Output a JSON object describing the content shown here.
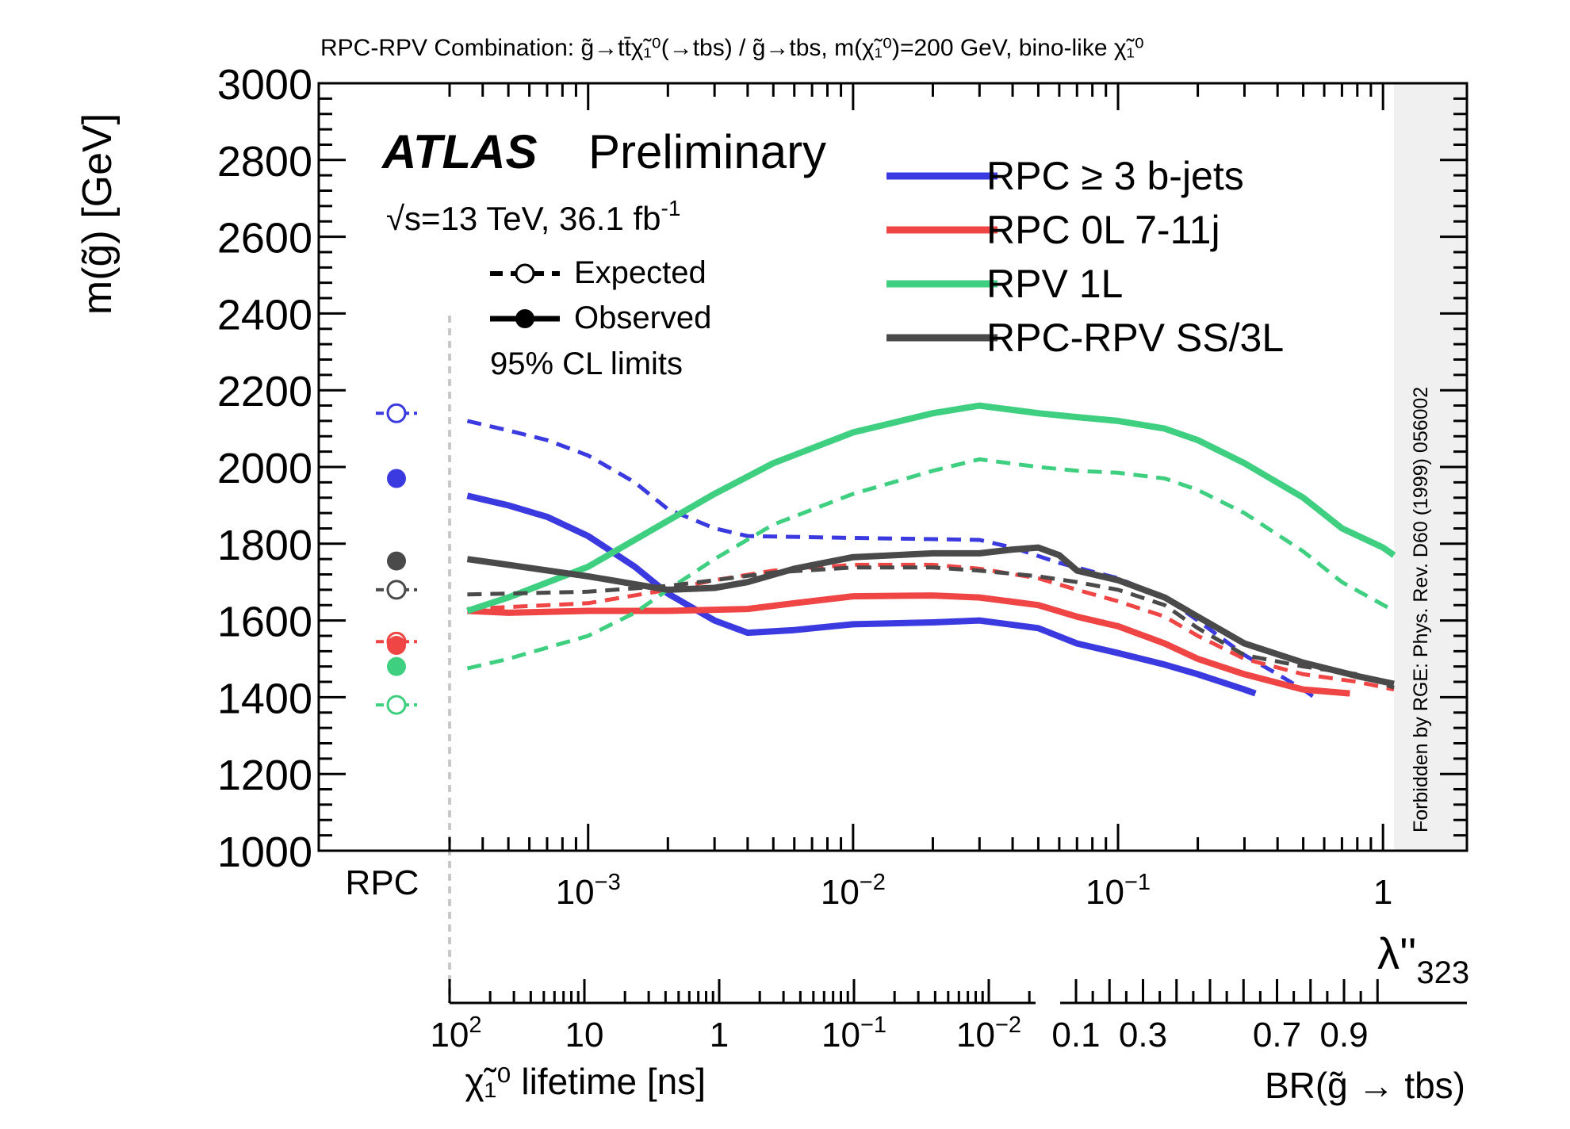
{
  "chart_data": {
    "type": "line",
    "title": "RPC-RPV Combination: g̃→tt̄χ̃₁⁰(→tbs) / g̃→tbs, m(χ̃₁⁰)=200 GeV, bino-like χ̃₁⁰",
    "ylabel": "m(g̃) [GeV]",
    "ylim": [
      1000,
      3000
    ],
    "yticks": [
      "1000",
      "1200",
      "1400",
      "1600",
      "1800",
      "2000",
      "2200",
      "2400",
      "2600",
      "2800",
      "3000"
    ],
    "x_scale": "log",
    "xlim": [
      0.0003,
      1.1
    ],
    "xticks": [
      {
        "value": 0.001,
        "label": "10",
        "exp": "−3"
      },
      {
        "value": 0.01,
        "label": "10",
        "exp": "−2"
      },
      {
        "value": 0.1,
        "label": "10",
        "exp": "−1"
      },
      {
        "value": 1,
        "label": "1",
        "exp": ""
      }
    ],
    "xlabel": "λ''",
    "xlabel_sub": "323",
    "rpc_label": "RPC",
    "atlas_label": "ATLAS",
    "preliminary_label": "Preliminary",
    "energy_label": "√s=13 TeV, 36.1 fb",
    "energy_exp": "-1",
    "style_legend": [
      {
        "label": "Expected",
        "style": "dashed-open"
      },
      {
        "label": "Observed",
        "style": "solid-filled"
      }
    ],
    "cl_label": "95% CL limits",
    "forbidden_label": "Forbidden by RGE: Phys. Rev. D60 (1999) 056002",
    "lifetime_axis": {
      "label": "χ̃₁⁰ lifetime [ns]",
      "ticks": [
        {
          "label": "10",
          "exp": "2"
        },
        {
          "label": "10",
          "exp": ""
        },
        {
          "label": "1",
          "exp": ""
        },
        {
          "label": "10",
          "exp": "−1"
        },
        {
          "label": "10",
          "exp": "−2"
        }
      ]
    },
    "br_axis": {
      "label": "BR(g̃ → tbs)",
      "ticks": [
        "0.1",
        "0.3",
        "0.7",
        "0.9"
      ]
    },
    "series": [
      {
        "name": "RPC ≥ 3 b-jets",
        "color": "#3a3ae0",
        "rpc_expected": 2140,
        "rpc_observed": 1970,
        "observed": [
          [
            0.00035,
            1925
          ],
          [
            0.0005,
            1900
          ],
          [
            0.0007,
            1870
          ],
          [
            0.001,
            1820
          ],
          [
            0.0015,
            1740
          ],
          [
            0.002,
            1670
          ],
          [
            0.003,
            1600
          ],
          [
            0.004,
            1568
          ],
          [
            0.006,
            1575
          ],
          [
            0.01,
            1590
          ],
          [
            0.02,
            1595
          ],
          [
            0.03,
            1600
          ],
          [
            0.05,
            1580
          ],
          [
            0.07,
            1540
          ],
          [
            0.1,
            1515
          ],
          [
            0.15,
            1485
          ],
          [
            0.2,
            1460
          ],
          [
            0.3,
            1420
          ],
          [
            0.33,
            1410
          ]
        ],
        "expected": [
          [
            0.00035,
            2120
          ],
          [
            0.0005,
            2095
          ],
          [
            0.0007,
            2070
          ],
          [
            0.001,
            2030
          ],
          [
            0.0015,
            1960
          ],
          [
            0.002,
            1890
          ],
          [
            0.003,
            1840
          ],
          [
            0.004,
            1820
          ],
          [
            0.01,
            1815
          ],
          [
            0.02,
            1812
          ],
          [
            0.03,
            1810
          ],
          [
            0.04,
            1790
          ],
          [
            0.06,
            1750
          ],
          [
            0.1,
            1710
          ],
          [
            0.15,
            1660
          ],
          [
            0.2,
            1600
          ],
          [
            0.3,
            1510
          ],
          [
            0.4,
            1460
          ],
          [
            0.5,
            1420
          ],
          [
            0.55,
            1400
          ]
        ]
      },
      {
        "name": "RPC 0L 7-11j",
        "color": "#f04545",
        "rpc_expected": 1545,
        "rpc_observed": 1535,
        "observed": [
          [
            0.00035,
            1625
          ],
          [
            0.0005,
            1620
          ],
          [
            0.001,
            1625
          ],
          [
            0.002,
            1625
          ],
          [
            0.004,
            1630
          ],
          [
            0.006,
            1645
          ],
          [
            0.01,
            1663
          ],
          [
            0.02,
            1665
          ],
          [
            0.03,
            1660
          ],
          [
            0.05,
            1640
          ],
          [
            0.07,
            1610
          ],
          [
            0.1,
            1585
          ],
          [
            0.15,
            1540
          ],
          [
            0.2,
            1500
          ],
          [
            0.3,
            1460
          ],
          [
            0.5,
            1420
          ],
          [
            0.75,
            1410
          ]
        ],
        "expected": [
          [
            0.00035,
            1630
          ],
          [
            0.0005,
            1635
          ],
          [
            0.001,
            1645
          ],
          [
            0.002,
            1680
          ],
          [
            0.003,
            1705
          ],
          [
            0.005,
            1730
          ],
          [
            0.01,
            1745
          ],
          [
            0.02,
            1745
          ],
          [
            0.03,
            1735
          ],
          [
            0.05,
            1710
          ],
          [
            0.07,
            1680
          ],
          [
            0.1,
            1650
          ],
          [
            0.15,
            1610
          ],
          [
            0.2,
            1560
          ],
          [
            0.3,
            1500
          ],
          [
            0.5,
            1460
          ],
          [
            0.8,
            1440
          ],
          [
            1.1,
            1420
          ]
        ]
      },
      {
        "name": "RPV 1L",
        "color": "#3fcf80",
        "rpc_expected": 1380,
        "rpc_observed": 1480,
        "observed": [
          [
            0.00035,
            1625
          ],
          [
            0.0005,
            1660
          ],
          [
            0.001,
            1740
          ],
          [
            0.002,
            1860
          ],
          [
            0.003,
            1930
          ],
          [
            0.005,
            2010
          ],
          [
            0.01,
            2090
          ],
          [
            0.02,
            2140
          ],
          [
            0.03,
            2160
          ],
          [
            0.05,
            2140
          ],
          [
            0.07,
            2130
          ],
          [
            0.1,
            2120
          ],
          [
            0.15,
            2100
          ],
          [
            0.2,
            2070
          ],
          [
            0.3,
            2010
          ],
          [
            0.5,
            1920
          ],
          [
            0.7,
            1840
          ],
          [
            1.0,
            1790
          ],
          [
            1.1,
            1770
          ]
        ],
        "expected": [
          [
            0.00035,
            1475
          ],
          [
            0.0005,
            1500
          ],
          [
            0.001,
            1560
          ],
          [
            0.0015,
            1620
          ],
          [
            0.002,
            1680
          ],
          [
            0.003,
            1760
          ],
          [
            0.005,
            1850
          ],
          [
            0.01,
            1930
          ],
          [
            0.02,
            1990
          ],
          [
            0.03,
            2020
          ],
          [
            0.05,
            2000
          ],
          [
            0.07,
            1990
          ],
          [
            0.1,
            1985
          ],
          [
            0.15,
            1970
          ],
          [
            0.2,
            1940
          ],
          [
            0.3,
            1880
          ],
          [
            0.5,
            1780
          ],
          [
            0.7,
            1700
          ],
          [
            1.1,
            1625
          ]
        ]
      },
      {
        "name": "RPC-RPV SS/3L",
        "color": "#4a4a4a",
        "rpc_expected": 1680,
        "rpc_observed": 1755,
        "observed": [
          [
            0.00035,
            1760
          ],
          [
            0.0005,
            1745
          ],
          [
            0.001,
            1715
          ],
          [
            0.002,
            1680
          ],
          [
            0.003,
            1685
          ],
          [
            0.004,
            1700
          ],
          [
            0.006,
            1735
          ],
          [
            0.01,
            1765
          ],
          [
            0.02,
            1775
          ],
          [
            0.03,
            1775
          ],
          [
            0.04,
            1785
          ],
          [
            0.05,
            1790
          ],
          [
            0.06,
            1770
          ],
          [
            0.07,
            1730
          ],
          [
            0.1,
            1705
          ],
          [
            0.15,
            1660
          ],
          [
            0.2,
            1610
          ],
          [
            0.3,
            1540
          ],
          [
            0.5,
            1490
          ],
          [
            0.8,
            1455
          ],
          [
            1.1,
            1435
          ]
        ],
        "expected": [
          [
            0.00035,
            1668
          ],
          [
            0.0005,
            1670
          ],
          [
            0.001,
            1675
          ],
          [
            0.002,
            1690
          ],
          [
            0.003,
            1705
          ],
          [
            0.005,
            1725
          ],
          [
            0.01,
            1738
          ],
          [
            0.02,
            1738
          ],
          [
            0.03,
            1730
          ],
          [
            0.05,
            1715
          ],
          [
            0.07,
            1700
          ],
          [
            0.1,
            1680
          ],
          [
            0.15,
            1640
          ],
          [
            0.2,
            1580
          ],
          [
            0.3,
            1510
          ],
          [
            0.5,
            1480
          ],
          [
            0.8,
            1460
          ],
          [
            1.1,
            1425
          ]
        ]
      }
    ]
  }
}
